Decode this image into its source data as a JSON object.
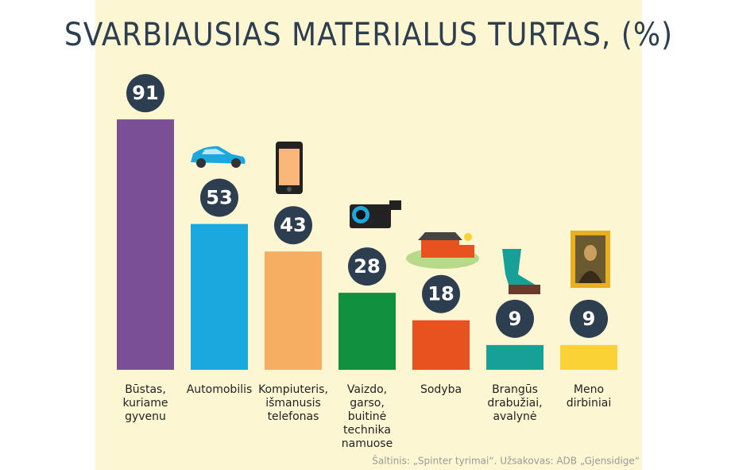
{
  "chart_data": {
    "type": "bar",
    "title": "SVARBIAUSIAS MATERIALUS TURTAS, (%)",
    "categories": [
      "Būstas, kuriame gyvenu",
      "Automobilis",
      "Kompiuteris, išmanusis telefonas",
      "Vaizdo, garso, buitinė technika namuose",
      "Sodyba",
      "Brangūs drabužiai, avalynė",
      "Meno dirbiniai"
    ],
    "values": [
      91,
      53,
      43,
      28,
      18,
      9,
      9
    ],
    "colors": [
      "#7b4f96",
      "#1ba8de",
      "#f5ae62",
      "#119040",
      "#e8521f",
      "#17a097",
      "#fbd235"
    ],
    "source": "Šaltinis: „Spinter tyrimai“. Užsakovas: ADB „Gjensidige“"
  }
}
